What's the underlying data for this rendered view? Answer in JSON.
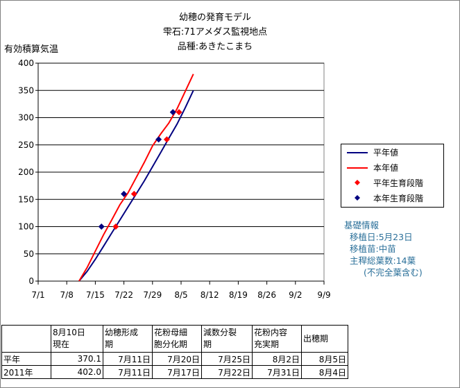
{
  "titles": [
    "幼穂の発育モデル",
    "雫石:71アメダス監視地点",
    "品種:あきたこまち"
  ],
  "chart_data": {
    "type": "line",
    "ylabel": "有効積算気温",
    "ylim": [
      0,
      400
    ],
    "yticks": [
      0,
      50,
      100,
      150,
      200,
      250,
      300,
      350,
      400
    ],
    "xticks": [
      "7/1",
      "7/8",
      "7/15",
      "7/22",
      "7/29",
      "8/5",
      "8/12",
      "8/19",
      "8/26",
      "9/2",
      "9/9"
    ],
    "xlim_days": [
      0,
      70
    ],
    "series": [
      {
        "name": "平年値",
        "color": "#000080",
        "x_days": [
          10,
          12,
          14,
          16,
          18,
          20,
          22,
          24,
          26,
          28,
          30,
          32,
          34,
          36,
          38
        ],
        "y": [
          0,
          18,
          40,
          64,
          88,
          112,
          136,
          160,
          184,
          210,
          236,
          262,
          288,
          318,
          350
        ]
      },
      {
        "name": "本年値",
        "color": "#ff0000",
        "x_days": [
          10,
          12,
          14,
          16,
          18,
          20,
          22,
          24,
          26,
          28,
          30,
          32,
          34,
          36,
          38
        ],
        "y": [
          0,
          25,
          55,
          85,
          112,
          140,
          162,
          190,
          218,
          248,
          270,
          290,
          316,
          348,
          380
        ]
      }
    ],
    "markers": [
      {
        "name": "平年生育段階",
        "color": "#ff0000",
        "x_days": [
          19,
          23.5,
          31.5,
          34.5
        ],
        "y": [
          100,
          160,
          260,
          310
        ]
      },
      {
        "name": "本年生育段階",
        "color": "#000080",
        "x_days": [
          15.5,
          21,
          29.5,
          33
        ],
        "y": [
          100,
          160,
          260,
          310
        ]
      }
    ]
  },
  "legend": [
    "平年値",
    "本年値",
    "平年生育段階",
    "本年生育段階"
  ],
  "info": {
    "heading": "基礎情報",
    "lines": [
      "移植日:5月23日",
      "移植苗:中苗",
      "主稈総葉数:14葉",
      "(不完全葉含む)"
    ]
  },
  "table": {
    "header": [
      "",
      "8月10日\n現在",
      "幼穂形成\n期",
      "花粉母細\n胞分化期",
      "減数分裂\n期",
      "花粉内容\n充実期",
      "出穂期"
    ],
    "rows": [
      [
        "平年",
        "370.1",
        "7月11日",
        "7月20日",
        "7月25日",
        "8月2日",
        "8月5日"
      ],
      [
        "2011年",
        "402.0",
        "7月11日",
        "7月17日",
        "7月22日",
        "7月31日",
        "8月4日"
      ]
    ]
  }
}
